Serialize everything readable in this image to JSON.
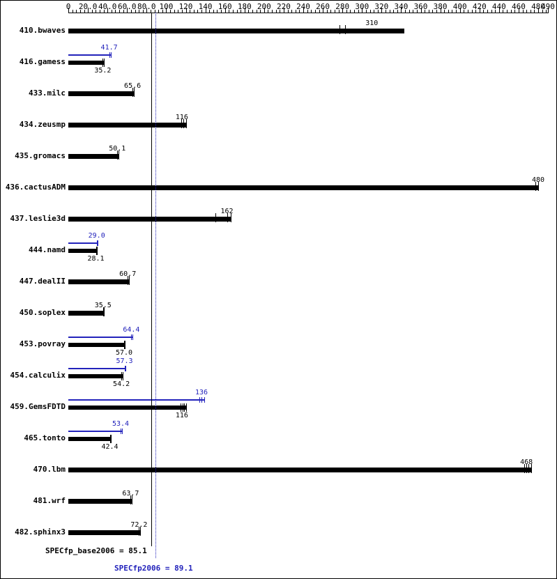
{
  "footer": {
    "base_text": "SPECfp_base2006 = 85.1",
    "peak_text": "SPECfp2006 = 89.1"
  },
  "colors": {
    "base": "#000000",
    "peak": "#2222bb",
    "background": "#ffffff"
  },
  "chart_data": {
    "type": "bar",
    "orientation": "horizontal",
    "xlim": [
      0,
      490
    ],
    "x_major_step": 20,
    "x_minor_step": 4,
    "x_tick_labels": [
      "0",
      "20.0",
      "40.0",
      "60.0",
      "80.0",
      "100",
      "120",
      "140",
      "160",
      "180",
      "200",
      "220",
      "240",
      "260",
      "280",
      "300",
      "320",
      "340",
      "360",
      "380",
      "400",
      "420",
      "440",
      "460",
      "480",
      "490"
    ],
    "grid": false,
    "legend": false,
    "reference_lines": [
      {
        "name": "SPECfp_base2006",
        "value": 85.1,
        "style": "solid",
        "color": "#000000"
      },
      {
        "name": "SPECfp2006",
        "value": 89.1,
        "style": "dotted",
        "color": "#2222bb"
      }
    ],
    "series_names": [
      "peak",
      "base"
    ],
    "benchmarks": [
      {
        "name": "410.bwaves",
        "base": {
          "value": 310,
          "label": "310",
          "bar_end": 343,
          "marks": [
            277,
            283
          ]
        }
      },
      {
        "name": "416.gamess",
        "peak": {
          "value": 41.7,
          "label": "41.7",
          "bar_end": 43.5,
          "marks": [
            41.7,
            43.5
          ]
        },
        "base": {
          "value": 35.2,
          "label": "35.2",
          "bar_end": 36.5,
          "marks": [
            35.2,
            36.5
          ]
        }
      },
      {
        "name": "433.milc",
        "base": {
          "value": 65.6,
          "label": "65.6",
          "bar_end": 67,
          "marks": [
            65.6,
            67
          ]
        }
      },
      {
        "name": "434.zeusmp",
        "base": {
          "value": 116,
          "label": "116",
          "bar_end": 120,
          "marks": [
            115,
            117.5,
            120
          ]
        }
      },
      {
        "name": "435.gromacs",
        "base": {
          "value": 50.1,
          "label": "50.1",
          "bar_end": 51.5,
          "marks": [
            50.1,
            51.5
          ]
        }
      },
      {
        "name": "436.cactusADM",
        "base": {
          "value": 480,
          "label": "480",
          "bar_end": 480,
          "marks": [
            477,
            480
          ]
        }
      },
      {
        "name": "437.leslie3d",
        "base": {
          "value": 162,
          "label": "162",
          "bar_end": 166,
          "marks": [
            150,
            162,
            166
          ]
        }
      },
      {
        "name": "444.namd",
        "peak": {
          "value": 29.0,
          "label": "29.0",
          "bar_end": 29.8,
          "marks": [
            29.0,
            29.8
          ]
        },
        "base": {
          "value": 28.1,
          "label": "28.1",
          "bar_end": 28.9,
          "marks": [
            28.1,
            28.9
          ]
        }
      },
      {
        "name": "447.dealII",
        "base": {
          "value": 60.7,
          "label": "60.7",
          "bar_end": 62,
          "marks": [
            60.7,
            62
          ]
        }
      },
      {
        "name": "450.soplex",
        "base": {
          "value": 35.5,
          "label": "35.5",
          "bar_end": 36.4,
          "marks": [
            35.5,
            36.4
          ]
        }
      },
      {
        "name": "453.povray",
        "peak": {
          "value": 64.4,
          "label": "64.4",
          "bar_end": 65.6,
          "marks": [
            64.4,
            65.6
          ]
        },
        "base": {
          "value": 57.0,
          "label": "57.0",
          "bar_end": 58,
          "marks": [
            57.0,
            58
          ]
        }
      },
      {
        "name": "454.calculix",
        "peak": {
          "value": 57.3,
          "label": "57.3",
          "bar_end": 58.4,
          "marks": [
            57.3,
            58.4
          ]
        },
        "base": {
          "value": 54.2,
          "label": "54.2",
          "bar_end": 55.3,
          "marks": [
            54.2,
            55.3
          ]
        }
      },
      {
        "name": "459.GemsFDTD",
        "peak": {
          "value": 136,
          "label": "136",
          "bar_end": 138.5,
          "marks": [
            134,
            136,
            138.5
          ]
        },
        "base": {
          "value": 116,
          "label": "116",
          "bar_end": 120.5,
          "marks": [
            114.5,
            116.5,
            118.5,
            120.5
          ]
        }
      },
      {
        "name": "465.tonto",
        "peak": {
          "value": 53.4,
          "label": "53.4",
          "bar_end": 54.5,
          "marks": [
            53.4,
            54.5
          ]
        },
        "base": {
          "value": 42.4,
          "label": "42.4",
          "bar_end": 43.3,
          "marks": [
            42.4,
            43.3
          ]
        }
      },
      {
        "name": "470.lbm",
        "base": {
          "value": 468,
          "label": "468",
          "bar_end": 472.5,
          "marks": [
            466,
            468,
            470,
            472.5
          ]
        }
      },
      {
        "name": "481.wrf",
        "base": {
          "value": 63.7,
          "label": "63.7",
          "bar_end": 65,
          "marks": [
            63.7,
            65
          ]
        }
      },
      {
        "name": "482.sphinx3",
        "base": {
          "value": 72.2,
          "label": "72.2",
          "bar_end": 73.6,
          "marks": [
            72.2,
            73.6
          ]
        }
      }
    ]
  }
}
